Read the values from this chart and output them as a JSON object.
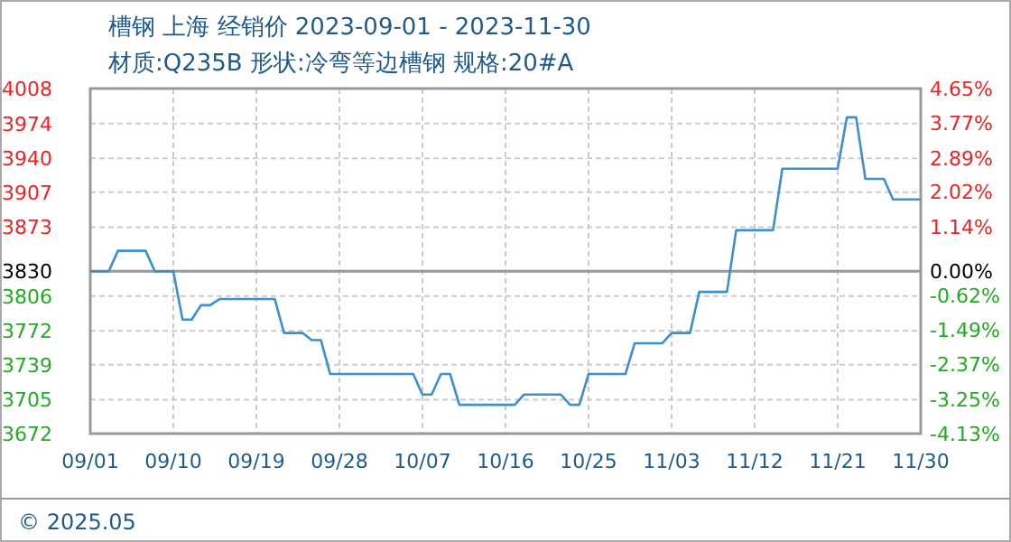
{
  "chart_data": {
    "type": "line",
    "title": "槽钢 上海 经销价 2023-09-01 - 2023-11-30",
    "subtitle": "材质:Q235B 形状:冷弯等边槽钢 规格:20#A",
    "annotations": [
      "© 2025.05"
    ],
    "x": [
      "--09-01",
      "--09-03",
      "--09-04",
      "--09-07",
      "--09-08",
      "--09-10",
      "--09-11",
      "--09-12",
      "--09-13",
      "--09-14",
      "--09-15",
      "--09-21",
      "--09-22",
      "--09-24",
      "--09-25",
      "--09-26",
      "--09-27",
      "--10-06",
      "--10-07",
      "--10-08",
      "--10-09",
      "--10-10",
      "--10-11",
      "--10-17",
      "--10-18",
      "--10-22",
      "--10-23",
      "--10-24",
      "--10-25",
      "--10-29",
      "--10-30",
      "--11-02",
      "--11-03",
      "--11-05",
      "--11-06",
      "--11-09",
      "--11-10",
      "--11-14",
      "--11-15",
      "--11-21",
      "--11-22",
      "--11-23",
      "--11-24",
      "--11-26",
      "--11-27",
      "--11-30"
    ],
    "series": [
      {
        "color": "#3b8fd3",
        "values": [
          3830,
          3830,
          3850,
          3850,
          3830,
          3830,
          3783,
          3783,
          3797,
          3797,
          3803,
          3803,
          3770,
          3770,
          3763,
          3763,
          3730,
          3730,
          3710,
          3710,
          3730,
          3730,
          3700,
          3700,
          3710,
          3710,
          3700,
          3700,
          3730,
          3730,
          3760,
          3760,
          3770,
          3770,
          3810,
          3810,
          3870,
          3870,
          3930,
          3930,
          3980,
          3980,
          3920,
          3920,
          3900,
          3900
        ]
      }
    ],
    "xlim": [
      "--09-01",
      "--11-30"
    ],
    "xticks": [
      {
        "value": "--09-01",
        "label": "09/01"
      },
      {
        "value": "--09-10",
        "label": "09/10"
      },
      {
        "value": "--09-19",
        "label": "09/19"
      },
      {
        "value": "--09-28",
        "label": "09/28"
      },
      {
        "value": "--10-07",
        "label": "10/07"
      },
      {
        "value": "--10-16",
        "label": "10/16"
      },
      {
        "value": "--10-25",
        "label": "10/25"
      },
      {
        "value": "--11-03",
        "label": "11/03"
      },
      {
        "value": "--11-12",
        "label": "11/12"
      },
      {
        "value": "--11-21",
        "label": "11/21"
      },
      {
        "value": "--11-30",
        "label": "11/30"
      }
    ],
    "ylim": [
      3672,
      4008
    ],
    "yticks": [
      4008,
      3974,
      3940,
      3907,
      3873,
      3830,
      3806,
      3772,
      3739,
      3705,
      3672
    ],
    "y2lim": [
      -4.13,
      4.65
    ],
    "y2ticks": [
      {
        "value": 4.65,
        "label": "4.65%"
      },
      {
        "value": 3.77,
        "label": "3.77%"
      },
      {
        "value": 2.89,
        "label": "2.89%"
      },
      {
        "value": 2.02,
        "label": "2.02%"
      },
      {
        "value": 1.14,
        "label": "1.14%"
      },
      {
        "value": 0,
        "label": "0.00%"
      },
      {
        "value": -0.62,
        "label": "-0.62%"
      },
      {
        "value": -1.49,
        "label": "-1.49%"
      },
      {
        "value": -2.37,
        "label": "-2.37%"
      },
      {
        "value": -3.25,
        "label": "-3.25%"
      },
      {
        "value": -4.13,
        "label": "-4.13%"
      }
    ],
    "ref_lines": [
      {
        "axis": "y",
        "value": 3830,
        "color": "#999999"
      }
    ],
    "grid": true,
    "marker": "none",
    "line_style": "solid"
  }
}
